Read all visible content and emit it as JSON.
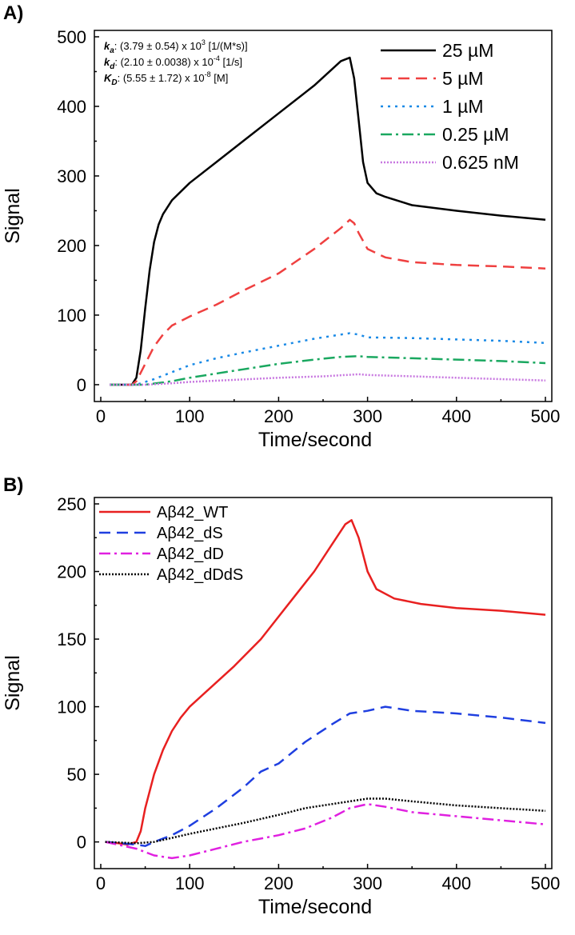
{
  "panel_a": {
    "letter": "A)",
    "params": [
      {
        "symbol": "k",
        "sub": "a",
        "text": ": (3.79 ± 0.54) x 10",
        "exp": "3",
        "unit": " [1/(M*s)]"
      },
      {
        "symbol": "k",
        "sub": "d",
        "text": ": (2.10 ± 0.0038) x 10",
        "exp": "-4",
        "unit": " [1/s]"
      },
      {
        "symbol": "K",
        "sub": "D",
        "text": ": (5.55 ± 1.72) x 10",
        "exp": "-8",
        "unit": " [M]"
      }
    ]
  },
  "panel_b": {
    "letter": "B)"
  },
  "chart_data": [
    {
      "type": "line",
      "panel": "A",
      "title": "",
      "xlabel": "Time/second",
      "ylabel": "Signal",
      "xlim": [
        0,
        500
      ],
      "ylim": [
        -15,
        500
      ],
      "xticks": [
        0,
        100,
        200,
        300,
        400,
        500
      ],
      "yticks": [
        0,
        100,
        200,
        300,
        400,
        500
      ],
      "legend_position": "top-right",
      "series": [
        {
          "name": "25 µM",
          "color": "#000000",
          "dash": "solid",
          "x": [
            10,
            35,
            40,
            45,
            50,
            55,
            60,
            65,
            70,
            80,
            100,
            130,
            160,
            200,
            240,
            270,
            280,
            285,
            290,
            295,
            300,
            310,
            320,
            350,
            400,
            450,
            500
          ],
          "y": [
            0,
            0,
            10,
            50,
            110,
            165,
            205,
            230,
            245,
            265,
            290,
            320,
            350,
            390,
            430,
            465,
            470,
            440,
            380,
            320,
            290,
            275,
            270,
            258,
            250,
            243,
            237
          ]
        },
        {
          "name": "5 µM",
          "color": "#ef4040",
          "dash": "long",
          "x": [
            10,
            35,
            40,
            50,
            60,
            70,
            80,
            100,
            130,
            160,
            200,
            240,
            270,
            280,
            285,
            290,
            300,
            320,
            350,
            400,
            450,
            500
          ],
          "y": [
            0,
            0,
            5,
            30,
            55,
            72,
            85,
            98,
            115,
            135,
            160,
            195,
            225,
            237,
            232,
            218,
            195,
            183,
            176,
            172,
            170,
            167
          ]
        },
        {
          "name": "1 µM",
          "color": "#1a8ae6",
          "dash": "dot",
          "x": [
            10,
            40,
            60,
            80,
            100,
            130,
            160,
            200,
            240,
            270,
            280,
            290,
            300,
            350,
            400,
            450,
            500
          ],
          "y": [
            0,
            0,
            8,
            18,
            28,
            38,
            46,
            56,
            66,
            72,
            74,
            72,
            68,
            67,
            65,
            63,
            60
          ]
        },
        {
          "name": "0.25 µM",
          "color": "#1aa860",
          "dash": "dashdot",
          "x": [
            10,
            50,
            80,
            100,
            130,
            160,
            200,
            240,
            270,
            290,
            300,
            350,
            400,
            450,
            500
          ],
          "y": [
            0,
            0,
            5,
            10,
            16,
            22,
            30,
            36,
            40,
            41,
            40,
            38,
            36,
            34,
            31
          ]
        },
        {
          "name": "0.625 nM",
          "color": "#c878e0",
          "dash": "densedot",
          "x": [
            10,
            50,
            80,
            100,
            150,
            200,
            250,
            290,
            300,
            350,
            400,
            450,
            500
          ],
          "y": [
            0,
            0,
            2,
            4,
            7,
            10,
            12,
            15,
            14,
            12,
            10,
            8,
            6
          ]
        }
      ]
    },
    {
      "type": "line",
      "panel": "B",
      "title": "",
      "xlabel": "Time/second",
      "ylabel": "Signal",
      "xlim": [
        0,
        500
      ],
      "ylim": [
        -15,
        250
      ],
      "xticks": [
        0,
        100,
        200,
        300,
        400,
        500
      ],
      "yticks": [
        0,
        50,
        100,
        150,
        200,
        250
      ],
      "legend_position": "top-left",
      "series": [
        {
          "name": "Aβ42_WT",
          "color": "#e82020",
          "dash": "solid",
          "x": [
            5,
            20,
            30,
            35,
            40,
            45,
            50,
            60,
            70,
            80,
            90,
            100,
            120,
            150,
            180,
            210,
            240,
            260,
            275,
            282,
            290,
            300,
            310,
            330,
            360,
            400,
            450,
            500
          ],
          "y": [
            0,
            -1,
            -2,
            -1,
            0,
            8,
            25,
            50,
            68,
            82,
            92,
            100,
            112,
            130,
            150,
            175,
            200,
            220,
            235,
            238,
            225,
            200,
            187,
            180,
            176,
            173,
            171,
            168
          ]
        },
        {
          "name": "Aβ42_dS",
          "color": "#1f3fe0",
          "dash": "long",
          "x": [
            5,
            40,
            50,
            60,
            80,
            100,
            130,
            160,
            180,
            200,
            230,
            260,
            280,
            300,
            320,
            330,
            350,
            400,
            450,
            500
          ],
          "y": [
            0,
            -2,
            -3,
            0,
            5,
            12,
            25,
            40,
            52,
            58,
            74,
            87,
            95,
            97,
            100,
            99,
            97,
            95,
            92,
            88
          ]
        },
        {
          "name": "Aβ42_dD",
          "color": "#e020e0",
          "dash": "dashdot",
          "x": [
            5,
            40,
            60,
            80,
            100,
            130,
            160,
            200,
            230,
            260,
            280,
            300,
            320,
            350,
            400,
            450,
            500
          ],
          "y": [
            0,
            -5,
            -10,
            -12,
            -10,
            -5,
            0,
            5,
            10,
            18,
            25,
            28,
            26,
            22,
            19,
            16,
            13
          ]
        },
        {
          "name": "Aβ42_dDdS",
          "color": "#000000",
          "dash": "densedot",
          "x": [
            5,
            40,
            60,
            80,
            100,
            130,
            160,
            200,
            230,
            260,
            290,
            300,
            320,
            350,
            400,
            450,
            500
          ],
          "y": [
            0,
            -1,
            0,
            3,
            6,
            10,
            14,
            20,
            25,
            28,
            31,
            32,
            32,
            30,
            27,
            25,
            23
          ]
        }
      ]
    }
  ]
}
